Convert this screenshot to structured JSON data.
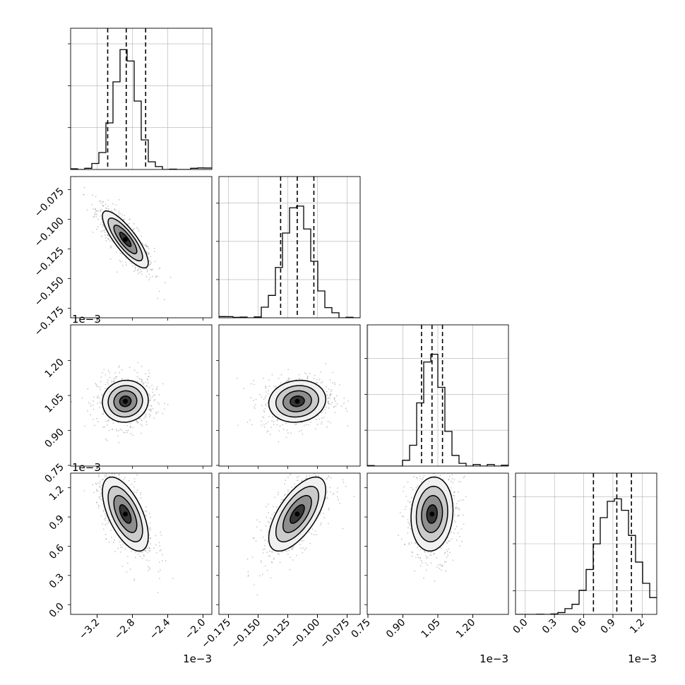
{
  "chart_data": {
    "type": "corner",
    "dimensions": [
      {
        "range": [
          -3.5,
          -1.9
        ],
        "ticks": [
          -3.2,
          -2.8,
          -2.4,
          -2.0
        ],
        "tick_labels": [
          "−3.2",
          "−2.8",
          "−2.4",
          "−2.0"
        ],
        "offset_label": "1e−3",
        "mean": -2.88,
        "sd": 0.13,
        "quantiles": [
          -3.08,
          -2.87,
          -2.65
        ],
        "hist_ymax": 1.18,
        "hist_yticks": [
          0.35,
          0.7,
          1.05
        ]
      },
      {
        "range": [
          -0.183,
          -0.064
        ],
        "ticks": [
          -0.175,
          -0.15,
          -0.125,
          -0.1,
          -0.075
        ],
        "tick_labels": [
          "−0.175",
          "−0.150",
          "−0.125",
          "−0.100",
          "−0.075"
        ],
        "offset_label": "",
        "mean": -0.117,
        "sd": 0.012,
        "quantiles": [
          -0.131,
          -0.117,
          -0.103
        ],
        "hist_ymax": 1.22,
        "hist_yticks": [
          0.33,
          0.66,
          0.99
        ]
      },
      {
        "range": [
          0.747,
          1.353
        ],
        "ticks": [
          0.75,
          0.9,
          1.05,
          1.2
        ],
        "tick_labels": [
          "0.75",
          "0.90",
          "1.05",
          "1.20"
        ],
        "offset_label": "1e−3",
        "mean": 1.025,
        "sd": 0.045,
        "quantiles": [
          0.98,
          1.025,
          1.07
        ],
        "hist_ymax": 1.22,
        "hist_yticks": [
          0.31,
          0.62,
          0.93
        ]
      },
      {
        "range": [
          -0.1,
          1.35
        ],
        "ticks": [
          0.0,
          0.3,
          0.6,
          0.9,
          1.2
        ],
        "tick_labels": [
          "0.0",
          "0.3",
          "0.6",
          "0.9",
          "1.2"
        ],
        "offset_label": "1e−3",
        "mean": 0.93,
        "sd": 0.19,
        "quantiles": [
          0.7,
          0.94,
          1.09
        ],
        "hist_ymax": 1.2,
        "hist_yticks": [
          0.2,
          0.6,
          1.0
        ]
      }
    ],
    "correlations": [
      [
        1.0,
        -0.82,
        0.05,
        -0.6
      ],
      [
        -0.82,
        1.0,
        0.1,
        0.65
      ],
      [
        0.05,
        0.1,
        1.0,
        0.1
      ],
      [
        -0.6,
        0.65,
        0.1,
        1.0
      ]
    ],
    "density_levels_sigma": [
      0.5,
      1.0,
      1.5,
      2.0
    ],
    "grid": true,
    "colors": {
      "line": "#000000",
      "samples": "#9a9a9a",
      "grid": "#b0b0b0"
    }
  }
}
